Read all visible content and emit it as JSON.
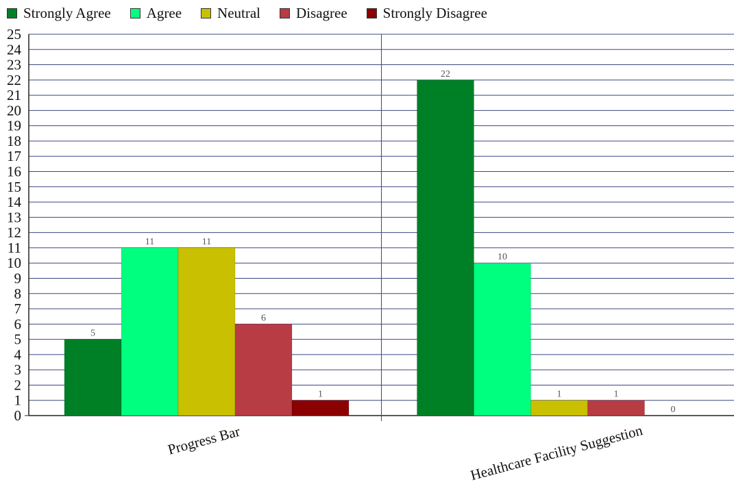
{
  "chart_data": {
    "type": "bar",
    "categories": [
      "Progress Bar",
      "Healthcare Facility Suggestion"
    ],
    "series": [
      {
        "name": "Strongly Agree",
        "color": "#008026",
        "values": [
          5,
          22
        ]
      },
      {
        "name": "Agree",
        "color": "#00ff7f",
        "values": [
          11,
          10
        ]
      },
      {
        "name": "Neutral",
        "color": "#c8c000",
        "values": [
          11,
          1
        ]
      },
      {
        "name": "Disagree",
        "color": "#b83c44",
        "values": [
          6,
          1
        ]
      },
      {
        "name": "Strongly Disagree",
        "color": "#8b0000",
        "values": [
          1,
          0
        ]
      }
    ],
    "ylim": [
      0,
      25
    ],
    "yticks": [
      0,
      1,
      2,
      3,
      4,
      5,
      6,
      7,
      8,
      9,
      10,
      11,
      12,
      13,
      14,
      15,
      16,
      17,
      18,
      19,
      20,
      21,
      22,
      23,
      24,
      25
    ],
    "grid": true,
    "legend_position": "top-left",
    "title": "",
    "xlabel": "",
    "ylabel": ""
  }
}
